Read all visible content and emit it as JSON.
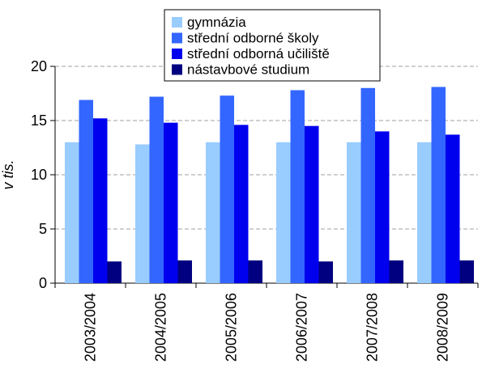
{
  "chart_data": {
    "type": "bar",
    "ylabel": "v tis.",
    "ylim": [
      0,
      20
    ],
    "yticks": [
      "0",
      "5",
      "10",
      "15",
      "20"
    ],
    "grid": true,
    "legend_position": "top",
    "categories": [
      "2003/2004",
      "2004/2005",
      "2005/2006",
      "2006/2007",
      "2007/2008",
      "2008/2009"
    ],
    "series": [
      {
        "name": "gymnázia",
        "color": "#99ccff",
        "values": [
          13.0,
          12.8,
          13.0,
          13.0,
          13.0,
          13.0
        ]
      },
      {
        "name": "střední odborné školy",
        "color": "#3366ff",
        "values": [
          16.9,
          17.2,
          17.3,
          17.8,
          18.0,
          18.1
        ]
      },
      {
        "name": "střední odborná učiliště",
        "color": "#0000ee",
        "values": [
          15.2,
          14.8,
          14.6,
          14.5,
          14.0,
          13.7
        ]
      },
      {
        "name": "nástavbové studium",
        "color": "#000080",
        "values": [
          2.0,
          2.1,
          2.1,
          2.0,
          2.1,
          2.1
        ]
      }
    ]
  }
}
